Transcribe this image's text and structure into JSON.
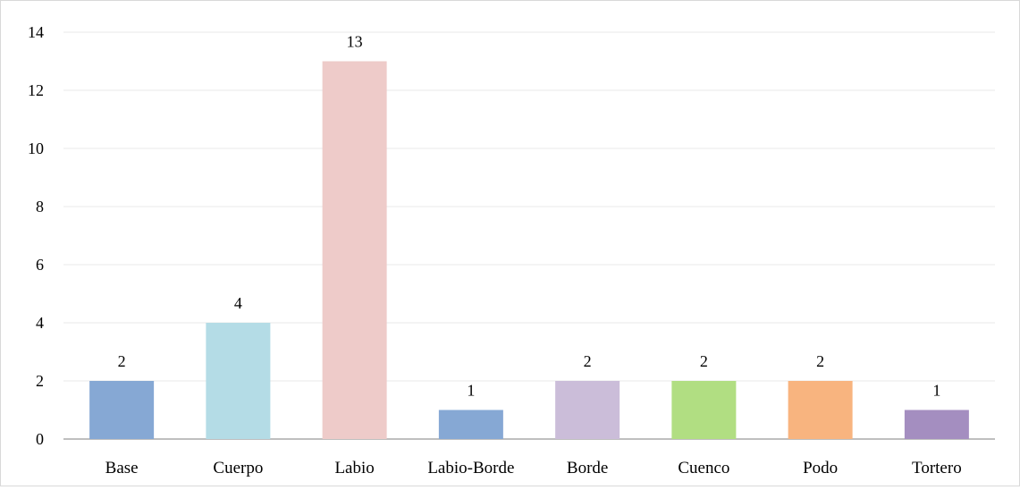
{
  "chart_data": {
    "type": "bar",
    "categories": [
      "Base",
      "Cuerpo",
      "Labio",
      "Labio-Borde",
      "Borde",
      "Cuenco",
      "Podo",
      "Tortero"
    ],
    "values": [
      2,
      4,
      13,
      1,
      2,
      2,
      2,
      1
    ],
    "colors": [
      "#86a8d4",
      "#b4dce6",
      "#eecbc9",
      "#86a8d4",
      "#cbbdd9",
      "#b1de82",
      "#f8b47f",
      "#a48ec0"
    ],
    "data_labels": [
      "2",
      "4",
      "13",
      "1",
      "2",
      "2",
      "2",
      "1"
    ],
    "yticks": [
      "0",
      "2",
      "4",
      "6",
      "8",
      "10",
      "12",
      "14"
    ],
    "ylim": [
      0,
      14
    ],
    "title": "",
    "xlabel": "",
    "ylabel": "",
    "grid": true,
    "legend": "none"
  }
}
